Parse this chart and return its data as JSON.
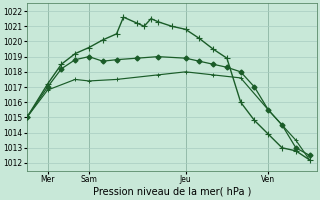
{
  "bg_color": "#c8e8d8",
  "grid_color": "#a8ccc0",
  "line_color": "#1a5c28",
  "title": "Pression niveau de la mer( hPa )",
  "ylabel_ticks": [
    1012,
    1013,
    1014,
    1015,
    1016,
    1017,
    1018,
    1019,
    1020,
    1021,
    1022
  ],
  "xlim": [
    0,
    42
  ],
  "ylim": [
    1011.5,
    1022.5
  ],
  "x_ticks": [
    3,
    9,
    23,
    35
  ],
  "x_labels": [
    "Mer",
    "Sam",
    "Jeu",
    "Ven"
  ],
  "x_vlines": [
    3,
    9,
    23,
    35
  ],
  "series1_x": [
    0,
    3,
    5,
    7,
    9,
    11,
    13,
    14,
    16,
    17,
    18,
    19,
    21,
    23,
    25,
    27,
    29,
    31,
    33,
    35,
    37,
    39,
    41
  ],
  "series1_y": [
    1015.0,
    1017.2,
    1018.5,
    1019.2,
    1019.6,
    1020.1,
    1020.5,
    1021.6,
    1021.2,
    1021.0,
    1021.5,
    1021.3,
    1021.0,
    1020.8,
    1020.2,
    1019.5,
    1018.9,
    1016.0,
    1014.8,
    1013.9,
    1013.0,
    1012.8,
    1012.2
  ],
  "series2_x": [
    0,
    3,
    5,
    7,
    9,
    11,
    13,
    16,
    19,
    23,
    25,
    27,
    29,
    31,
    33,
    35,
    37,
    39,
    41
  ],
  "series2_y": [
    1015.0,
    1017.0,
    1018.2,
    1018.8,
    1019.0,
    1018.7,
    1018.8,
    1018.9,
    1019.0,
    1018.9,
    1018.7,
    1018.5,
    1018.3,
    1018.0,
    1017.0,
    1015.5,
    1014.5,
    1013.0,
    1012.5
  ],
  "series3_x": [
    0,
    3,
    7,
    9,
    13,
    19,
    23,
    27,
    31,
    35,
    37,
    39,
    41
  ],
  "series3_y": [
    1015.0,
    1016.8,
    1017.5,
    1017.4,
    1017.5,
    1017.8,
    1018.0,
    1017.8,
    1017.6,
    1015.5,
    1014.5,
    1013.5,
    1012.2
  ],
  "tick_fontsize": 5.5,
  "label_fontsize": 7.0,
  "lw": 1.0,
  "marker_size": 3.0
}
